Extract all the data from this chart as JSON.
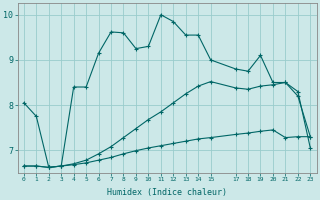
{
  "xlabel": "Humidex (Indice chaleur)",
  "bg_color": "#cce8e8",
  "grid_color": "#99cccc",
  "line_color": "#006666",
  "xlim": [
    -0.5,
    23.5
  ],
  "ylim": [
    6.5,
    10.25
  ],
  "xticks": [
    0,
    1,
    2,
    3,
    4,
    5,
    6,
    7,
    8,
    9,
    10,
    11,
    12,
    13,
    14,
    15,
    17,
    18,
    19,
    20,
    21,
    22,
    23
  ],
  "yticks": [
    7,
    8,
    9,
    10
  ],
  "line1_x": [
    0,
    1,
    2,
    3,
    4,
    5,
    6,
    7,
    8,
    9,
    10,
    11,
    12,
    13,
    14,
    15,
    17,
    18,
    19,
    20,
    21,
    22,
    23
  ],
  "line1_y": [
    8.05,
    7.75,
    6.62,
    6.65,
    8.4,
    8.4,
    9.15,
    9.62,
    9.6,
    9.25,
    9.3,
    10.0,
    9.85,
    9.55,
    9.55,
    9.0,
    8.8,
    8.75,
    9.1,
    8.5,
    8.5,
    8.2,
    7.3
  ],
  "line2_x": [
    0,
    1,
    2,
    3,
    4,
    5,
    6,
    7,
    8,
    9,
    10,
    11,
    12,
    13,
    14,
    15,
    17,
    18,
    19,
    20,
    21,
    22,
    23
  ],
  "line2_y": [
    6.65,
    6.65,
    6.62,
    6.65,
    6.68,
    6.72,
    6.78,
    6.84,
    6.92,
    6.99,
    7.05,
    7.1,
    7.15,
    7.2,
    7.25,
    7.28,
    7.35,
    7.38,
    7.42,
    7.45,
    7.28,
    7.3,
    7.3
  ],
  "line3_x": [
    0,
    1,
    2,
    3,
    4,
    5,
    6,
    7,
    8,
    9,
    10,
    11,
    12,
    13,
    14,
    15,
    17,
    18,
    19,
    20,
    21,
    22,
    23
  ],
  "line3_y": [
    6.65,
    6.65,
    6.62,
    6.65,
    6.7,
    6.78,
    6.92,
    7.08,
    7.28,
    7.48,
    7.68,
    7.85,
    8.05,
    8.25,
    8.42,
    8.52,
    8.38,
    8.35,
    8.42,
    8.45,
    8.5,
    8.3,
    7.05
  ]
}
